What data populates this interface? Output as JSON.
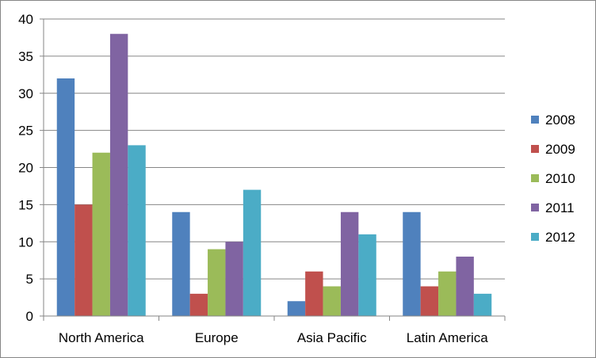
{
  "chart_data": {
    "type": "bar",
    "categories": [
      "North America",
      "Europe",
      "Asia Pacific",
      "Latin America"
    ],
    "series": [
      {
        "name": "2008",
        "color": "#4F81BD",
        "values": [
          32,
          14,
          2,
          14
        ]
      },
      {
        "name": "2009",
        "color": "#C0504D",
        "values": [
          15,
          3,
          6,
          4
        ]
      },
      {
        "name": "2010",
        "color": "#9BBB59",
        "values": [
          22,
          9,
          4,
          6
        ]
      },
      {
        "name": "2011",
        "color": "#8064A2",
        "values": [
          38,
          10,
          14,
          8
        ]
      },
      {
        "name": "2012",
        "color": "#4BACC6",
        "values": [
          23,
          17,
          11,
          3
        ]
      }
    ],
    "yticks": [
      "0",
      "5",
      "10",
      "15",
      "20",
      "25",
      "30",
      "35",
      "40"
    ],
    "ylim": [
      0,
      40
    ],
    "grid": true,
    "legend": "right",
    "title": "",
    "xlabel": "",
    "ylabel": ""
  }
}
